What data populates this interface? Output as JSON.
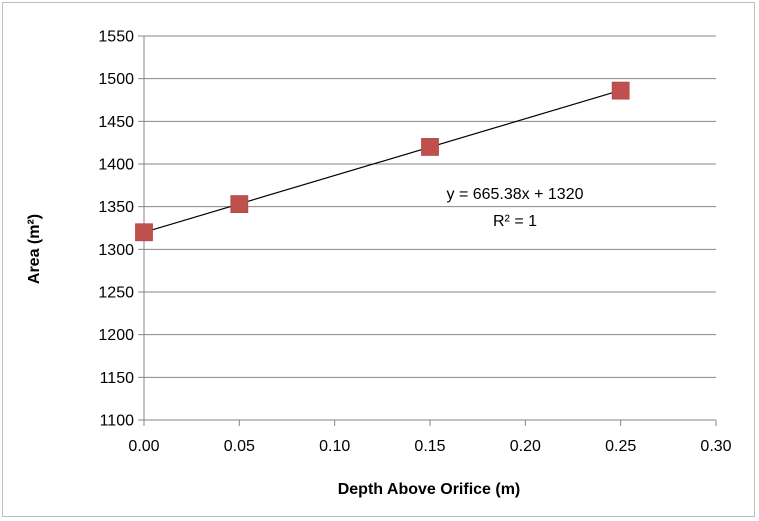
{
  "chart_data": {
    "type": "scatter",
    "title": "",
    "xlabel": "Depth Above Orifice (m)",
    "ylabel": "Area (m²)",
    "xlim": [
      0,
      0.3
    ],
    "ylim": [
      1100,
      1550
    ],
    "xticks": [
      "0.00",
      "0.05",
      "0.10",
      "0.15",
      "0.20",
      "0.25",
      "0.30"
    ],
    "yticks": [
      "1100",
      "1150",
      "1200",
      "1250",
      "1300",
      "1350",
      "1400",
      "1450",
      "1500",
      "1550"
    ],
    "grid": true,
    "legend": "none",
    "marker_color": "#c0504d",
    "series": [
      {
        "x": [
          0,
          0.05,
          0.15,
          0.25
        ],
        "y": [
          1320,
          1353,
          1420,
          1486
        ]
      }
    ],
    "trendline": {
      "type": "linear",
      "slope": 665.38,
      "intercept": 1320,
      "x_range": [
        0,
        0.25
      ],
      "equation_label": "y = 665.38x + 1320",
      "r2_label": "R² = 1"
    }
  }
}
